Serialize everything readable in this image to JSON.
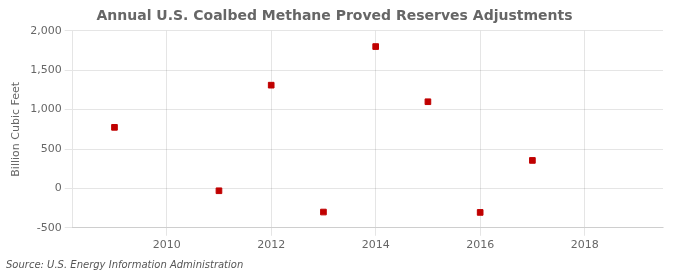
{
  "chart_data": {
    "type": "scatter",
    "title": "Annual U.S. Coalbed Methane Proved Reserves Adjustments",
    "ylabel": "Billion Cubic Feet",
    "source": "Source: U.S. Energy Information Administration",
    "x": [
      2009,
      2011,
      2012,
      2013,
      2014,
      2015,
      2016,
      2017
    ],
    "values": [
      775,
      -30,
      1310,
      -300,
      1800,
      1100,
      -305,
      355
    ],
    "color": "#c00000",
    "marker": "square",
    "xlim": [
      2008.2,
      2019.5
    ],
    "ylim": [
      -500,
      2000
    ],
    "xticks": [
      2010,
      2012,
      2014,
      2016,
      2018
    ],
    "yticks": [
      -500,
      0,
      500,
      {
        "value": 1000,
        "label": "1,000"
      },
      {
        "value": 1500,
        "label": "1,500"
      },
      {
        "value": 2000,
        "label": "2,000"
      }
    ],
    "grid": true
  }
}
